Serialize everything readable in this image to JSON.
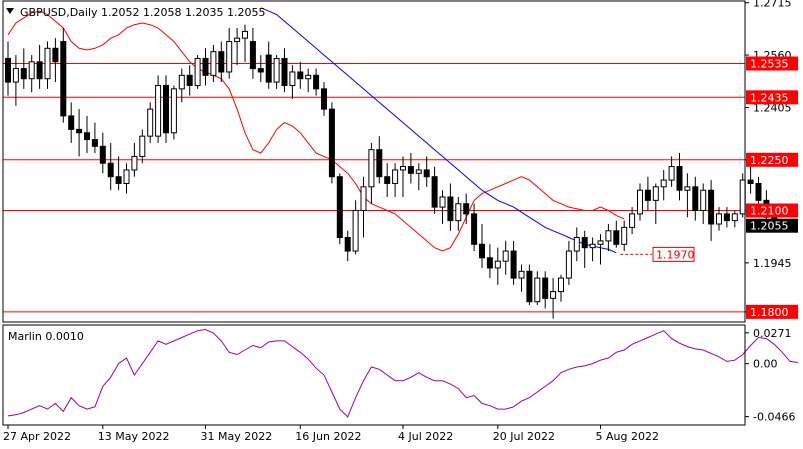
{
  "header": {
    "symbol_line": "GBPUSD,Daily  1.2052 1.2058 1.2035 1.2055",
    "menu_icon": "triangle-down-icon"
  },
  "colors": {
    "bull": "#ffffff",
    "bear": "#000000",
    "ma_fast": "#ff0000",
    "ma_slow": "#0000ff",
    "level_line": "#ff0000",
    "level_label_bg": "#ff0000",
    "level_label_text": "#ffffff",
    "marlin": "#a000a0",
    "grid": "#c0c0c0",
    "frame": "#000000"
  },
  "chart_data": [
    {
      "type": "candlestick",
      "title": "GBPUSD,Daily  1.2052 1.2058 1.2035 1.2055",
      "ylim": [
        1.177,
        1.272
      ],
      "y_ticks": [
        "1.2715",
        "1.2560",
        "1.2405",
        "1.2250",
        "1.2100",
        "1.1945",
        "1.1800"
      ],
      "y_tick_values": [
        1.2715,
        1.256,
        1.2405,
        1.225,
        1.21,
        1.1945,
        1.18
      ],
      "x_labels": [
        "27 Apr 2022",
        "13 May 2022",
        "31 May 2022",
        "16 Jun 2022",
        "4 Jul 2022",
        "20 Jul 2022",
        "5 Aug 2022"
      ],
      "x_label_index": [
        0,
        12,
        25,
        37,
        50,
        62,
        75
      ],
      "levels": [
        {
          "label": "1.2535",
          "value": 1.2535
        },
        {
          "label": "1.2435",
          "value": 1.2435
        },
        {
          "label": "1.2250",
          "value": 1.225
        },
        {
          "label": "1.2100",
          "value": 1.21
        },
        {
          "label": "1.1800",
          "value": 1.18
        }
      ],
      "price_label": {
        "label": "1.2055",
        "value": 1.2055
      },
      "annotation": {
        "label": "1.1970",
        "value": 1.197
      },
      "candles": [
        [
          1.255,
          1.26,
          1.244,
          1.248
        ],
        [
          1.248,
          1.256,
          1.241,
          1.252
        ],
        [
          1.252,
          1.258,
          1.246,
          1.249
        ],
        [
          1.249,
          1.256,
          1.245,
          1.254
        ],
        [
          1.254,
          1.259,
          1.246,
          1.249
        ],
        [
          1.249,
          1.26,
          1.246,
          1.258
        ],
        [
          1.258,
          1.261,
          1.248,
          1.254
        ],
        [
          1.26,
          1.264,
          1.236,
          1.238
        ],
        [
          1.238,
          1.242,
          1.23,
          1.234
        ],
        [
          1.234,
          1.24,
          1.226,
          1.233
        ],
        [
          1.233,
          1.238,
          1.227,
          1.231
        ],
        [
          1.231,
          1.236,
          1.227,
          1.229
        ],
        [
          1.229,
          1.233,
          1.221,
          1.224
        ],
        [
          1.224,
          1.23,
          1.216,
          1.22
        ],
        [
          1.22,
          1.226,
          1.216,
          1.218
        ],
        [
          1.218,
          1.224,
          1.215,
          1.222
        ],
        [
          1.222,
          1.23,
          1.22,
          1.226
        ],
        [
          1.226,
          1.234,
          1.224,
          1.232
        ],
        [
          1.232,
          1.242,
          1.23,
          1.24
        ],
        [
          1.232,
          1.25,
          1.23,
          1.247
        ],
        [
          1.247,
          1.25,
          1.23,
          1.233
        ],
        [
          1.233,
          1.247,
          1.231,
          1.246
        ],
        [
          1.246,
          1.252,
          1.242,
          1.25
        ],
        [
          1.25,
          1.253,
          1.244,
          1.247
        ],
        [
          1.247,
          1.256,
          1.246,
          1.255
        ],
        [
          1.255,
          1.258,
          1.247,
          1.25
        ],
        [
          1.25,
          1.259,
          1.248,
          1.257
        ],
        [
          1.257,
          1.26,
          1.248,
          1.251
        ],
        [
          1.251,
          1.264,
          1.249,
          1.26
        ],
        [
          1.26,
          1.264,
          1.253,
          1.261
        ],
        [
          1.261,
          1.265,
          1.254,
          1.263
        ],
        [
          1.26,
          1.264,
          1.249,
          1.252
        ],
        [
          1.252,
          1.256,
          1.248,
          1.251
        ],
        [
          1.256,
          1.26,
          1.246,
          1.248
        ],
        [
          1.248,
          1.256,
          1.246,
          1.255
        ],
        [
          1.255,
          1.258,
          1.245,
          1.247
        ],
        [
          1.247,
          1.253,
          1.243,
          1.251
        ],
        [
          1.251,
          1.254,
          1.246,
          1.249
        ],
        [
          1.249,
          1.252,
          1.245,
          1.25
        ],
        [
          1.25,
          1.252,
          1.244,
          1.246
        ],
        [
          1.246,
          1.248,
          1.238,
          1.24
        ],
        [
          1.24,
          1.242,
          1.218,
          1.22
        ],
        [
          1.22,
          1.221,
          1.2,
          1.202
        ],
        [
          1.202,
          1.204,
          1.195,
          1.198
        ],
        [
          1.198,
          1.213,
          1.197,
          1.21
        ],
        [
          1.21,
          1.22,
          1.202,
          1.217
        ],
        [
          1.217,
          1.23,
          1.212,
          1.228
        ],
        [
          1.228,
          1.232,
          1.218,
          1.22
        ],
        [
          1.22,
          1.224,
          1.214,
          1.218
        ],
        [
          1.218,
          1.224,
          1.214,
          1.222
        ],
        [
          1.222,
          1.226,
          1.214,
          1.223
        ],
        [
          1.223,
          1.227,
          1.218,
          1.221
        ],
        [
          1.221,
          1.224,
          1.216,
          1.222
        ],
        [
          1.222,
          1.226,
          1.217,
          1.22
        ],
        [
          1.22,
          1.223,
          1.209,
          1.211
        ],
        [
          1.211,
          1.216,
          1.206,
          1.214
        ],
        [
          1.214,
          1.218,
          1.204,
          1.207
        ],
        [
          1.207,
          1.214,
          1.204,
          1.212
        ],
        [
          1.212,
          1.215,
          1.206,
          1.209
        ],
        [
          1.209,
          1.212,
          1.198,
          1.2
        ]
      ],
      "candles_b": [
        [
          1.2,
          1.206,
          1.193,
          1.196
        ],
        [
          1.196,
          1.2,
          1.19,
          1.193
        ],
        [
          1.193,
          1.199,
          1.188,
          1.195
        ],
        [
          1.195,
          1.201,
          1.191,
          1.198
        ],
        [
          1.198,
          1.201,
          1.188,
          1.19
        ],
        [
          1.19,
          1.194,
          1.186,
          1.192
        ],
        [
          1.192,
          1.194,
          1.182,
          1.183
        ],
        [
          1.183,
          1.192,
          1.182,
          1.19
        ],
        [
          1.19,
          1.192,
          1.181,
          1.184
        ],
        [
          1.184,
          1.19,
          1.178,
          1.186
        ],
        [
          1.186,
          1.191,
          1.183,
          1.19
        ],
        [
          1.19,
          1.201,
          1.188,
          1.198
        ],
        [
          1.198,
          1.205,
          1.195,
          1.202
        ],
        [
          1.202,
          1.204,
          1.193,
          1.199
        ],
        [
          1.199,
          1.202,
          1.195,
          1.2
        ],
        [
          1.2,
          1.203,
          1.194,
          1.201
        ],
        [
          1.201,
          1.206,
          1.198,
          1.204
        ],
        [
          1.204,
          1.207,
          1.199,
          1.2
        ],
        [
          1.2,
          1.207,
          1.198,
          1.205
        ],
        [
          1.205,
          1.211,
          1.203,
          1.209
        ],
        [
          1.209,
          1.218,
          1.207,
          1.216
        ],
        [
          1.216,
          1.22,
          1.21,
          1.213
        ],
        [
          1.213,
          1.218,
          1.206,
          1.217
        ],
        [
          1.217,
          1.222,
          1.213,
          1.219
        ],
        [
          1.219,
          1.226,
          1.217,
          1.223
        ],
        [
          1.223,
          1.227,
          1.213,
          1.216
        ],
        [
          1.216,
          1.221,
          1.208,
          1.217
        ],
        [
          1.217,
          1.22,
          1.207,
          1.21
        ],
        [
          1.21,
          1.218,
          1.206,
          1.216
        ],
        [
          1.216,
          1.219,
          1.201,
          1.206
        ],
        [
          1.206,
          1.211,
          1.204,
          1.209
        ],
        [
          1.209,
          1.211,
          1.205,
          1.207
        ],
        [
          1.207,
          1.21,
          1.205,
          1.209
        ],
        [
          1.209,
          1.221,
          1.208,
          1.219
        ],
        [
          1.219,
          1.226,
          1.215,
          1.218
        ],
        [
          1.218,
          1.22,
          1.211,
          1.213
        ],
        [
          1.213,
          1.216,
          1.206,
          1.208
        ],
        [
          1.208,
          1.21,
          1.205,
          1.206
        ],
        [
          1.2052,
          1.2058,
          1.2035,
          1.2055
        ]
      ],
      "ma_fast": [
        1.262,
        1.2655,
        1.267,
        1.2685,
        1.269,
        1.268,
        1.266,
        1.264,
        1.26,
        1.258,
        1.2575,
        1.258,
        1.259,
        1.261,
        1.262,
        1.264,
        1.265,
        1.2655,
        1.265,
        1.264,
        1.262,
        1.26,
        1.257,
        1.254,
        1.252,
        1.251,
        1.25,
        1.249,
        1.246,
        1.24,
        1.233,
        1.228,
        1.227,
        1.23,
        1.234,
        1.236,
        1.235,
        1.233,
        1.23,
        1.227,
        1.226,
        1.225,
        1.223,
        1.221,
        1.218,
        1.214,
        1.212,
        1.211,
        1.21,
        1.209,
        1.207,
        1.205,
        1.203,
        1.201,
        1.199,
        1.198,
        1.199,
        1.203,
        1.208,
        1.213,
        1.215,
        1.216,
        1.217,
        1.218,
        1.219,
        1.22,
        1.219,
        1.217,
        1.215,
        1.213,
        1.212,
        1.211,
        1.2105,
        1.21,
        1.21,
        1.211,
        1.21,
        1.2085,
        1.2075
      ],
      "ma_slow": [
        1.27,
        1.269,
        1.268,
        1.266,
        1.264,
        1.262,
        1.26,
        1.258,
        1.256,
        1.254,
        1.252,
        1.25,
        1.248,
        1.246,
        1.244,
        1.242,
        1.24,
        1.238,
        1.236,
        1.234,
        1.232,
        1.23,
        1.228,
        1.226,
        1.224,
        1.222,
        1.22,
        1.218,
        1.216,
        1.2145,
        1.213,
        1.212,
        1.211,
        1.2095,
        1.208,
        1.2065,
        1.205,
        1.204,
        1.203,
        1.202,
        1.201,
        1.2,
        1.1995,
        1.199,
        1.1985,
        1.1975
      ],
      "ma_slow_start": 32
    },
    {
      "type": "line",
      "title": "Marlin 0.0010",
      "ylim": [
        -0.054,
        0.034
      ],
      "y_ticks": [
        "0.0271",
        "0.00",
        "-0.0466"
      ],
      "y_tick_values": [
        0.0271,
        0.0,
        -0.0466
      ],
      "series": [
        {
          "values": [
            -0.046,
            -0.045,
            -0.043,
            -0.04,
            -0.037,
            -0.04,
            -0.035,
            -0.042,
            -0.03,
            -0.037,
            -0.04,
            -0.038,
            -0.02,
            -0.012,
            0.0,
            0.005,
            -0.01,
            0.0,
            0.01,
            0.02,
            0.017,
            0.02,
            0.023,
            0.026,
            0.029,
            0.03,
            0.027,
            0.02,
            0.01,
            0.008,
            0.012,
            0.016,
            0.014,
            0.019,
            0.02,
            0.02,
            0.015,
            0.01,
            0.004,
            -0.004,
            -0.01,
            -0.025,
            -0.04,
            -0.047,
            -0.03,
            -0.015,
            -0.003,
            -0.005,
            -0.01,
            -0.015,
            -0.015,
            -0.012,
            -0.008,
            -0.012,
            -0.015,
            -0.015,
            -0.018,
            -0.022,
            -0.03,
            -0.028,
            -0.035,
            -0.037,
            -0.04,
            -0.04,
            -0.038,
            -0.033,
            -0.03,
            -0.025,
            -0.02,
            -0.015,
            -0.008,
            -0.005,
            -0.003,
            -0.002,
            0.0,
            0.003,
            0.005,
            0.01,
            0.012,
            0.017,
            0.02,
            0.023,
            0.026,
            0.029,
            0.022,
            0.018,
            0.015,
            0.013,
            0.012,
            0.009,
            0.006,
            0.002,
            0.003,
            0.008,
            0.016,
            0.023,
            0.022,
            0.017,
            0.01,
            0.002,
            0.001
          ]
        }
      ]
    }
  ]
}
